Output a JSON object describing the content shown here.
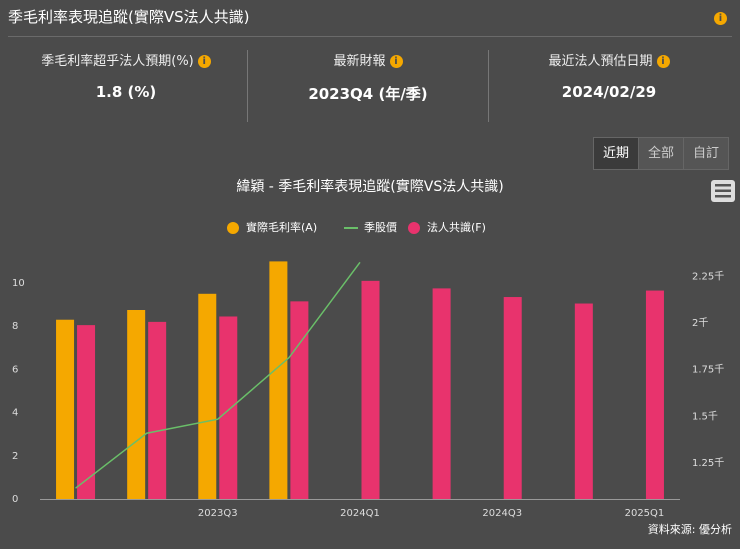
{
  "header": {
    "title": "季毛利率表現追蹤(實際VS法人共識)"
  },
  "stats": [
    {
      "label": "季毛利率超乎法人預期(%)",
      "value": "1.8 (%)"
    },
    {
      "label": "最新財報",
      "value": "2023Q4 (年/季)"
    },
    {
      "label": "最近法人預估日期",
      "value": "2024/02/29"
    }
  ],
  "buttons": [
    "近期",
    "全部",
    "自訂"
  ],
  "source": "資料來源: 優分析",
  "chart_data": {
    "type": "bar",
    "title": "緯穎 - 季毛利率表現追蹤(實際VS法人共識)",
    "categories": [
      null,
      null,
      "2023Q3",
      null,
      "2024Q1",
      null,
      "2024Q3",
      null,
      "2025Q1"
    ],
    "series": [
      {
        "name": "實際毛利率(A)",
        "type": "bar",
        "color": "#f5a800",
        "values": [
          8.3,
          8.75,
          9.5,
          11.0,
          null,
          null,
          null,
          null,
          null
        ]
      },
      {
        "name": "季股價",
        "type": "line",
        "axis": "y2",
        "color": "#6abf69",
        "values": [
          1116,
          1410,
          1485,
          1814,
          2325,
          null,
          null,
          null,
          null
        ]
      },
      {
        "name": "法人共識(F)",
        "type": "bar",
        "color": "#e8336d",
        "values": [
          8.05,
          8.2,
          8.45,
          9.15,
          10.1,
          9.75,
          9.35,
          9.05,
          9.65
        ]
      }
    ],
    "ylim": [
      0,
      11
    ],
    "yticks": [
      0,
      2,
      4,
      6,
      8,
      10
    ],
    "y2lim": [
      1058,
      2330
    ],
    "y2ticks": [
      {
        "value": 1250,
        "label": "1.25千"
      },
      {
        "value": 1500,
        "label": "1.5千"
      },
      {
        "value": 1750,
        "label": "1.75千"
      },
      {
        "value": 2000,
        "label": "2千"
      },
      {
        "value": 2250,
        "label": "2.25千"
      }
    ],
    "grid": false
  }
}
